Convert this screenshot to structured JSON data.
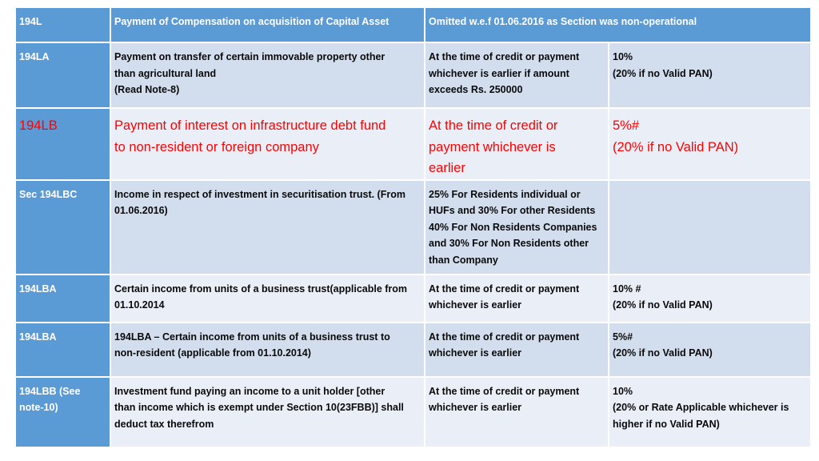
{
  "rows": [
    {
      "section": "194L",
      "nature": [
        "Payment of Compensation on acquisition of Capital Asset"
      ],
      "merged": "Omitted w.e.f 01.06.2016 as Section was non-operational"
    },
    {
      "section": "194LA",
      "nature": [
        "Payment on transfer of certain immovable property other",
        "than agricultural land",
        "(Read Note-8)"
      ],
      "timing": [
        "At the time of credit or payment",
        "whichever is earlier if amount",
        "exceeds Rs. 250000"
      ],
      "rate": [
        "10%",
        "(20% if no Valid PAN)"
      ]
    },
    {
      "section": "194LB",
      "nature": [
        "Payment of interest on infrastructure debt fund",
        "to non-resident or foreign company"
      ],
      "timing": [
        "At the time of credit or",
        "payment whichever is",
        "earlier"
      ],
      "rate": [
        "5%#",
        "(20% if no Valid PAN)"
      ]
    },
    {
      "section": "Sec 194LBC",
      "nature": [
        "Income in respect of investment in securitisation trust. (From",
        "01.06.2016)"
      ],
      "timing": [
        "25% For Residents individual or",
        "HUFs and 30% For other Residents",
        "40% For Non Residents Companies",
        "and 30% For Non Residents other",
        "than Company"
      ],
      "rate": []
    },
    {
      "section": "194LBA",
      "nature": [
        "Certain income from units of a business trust(applicable from",
        "01.10.2014"
      ],
      "timing": [
        "At the time of credit or payment",
        "whichever is earlier"
      ],
      "rate": [
        "10% #",
        "(20% if no Valid PAN)"
      ]
    },
    {
      "section": "194LBA",
      "nature": [
        "194LBA – Certain income from units of a business trust to",
        "non-resident (applicable from 01.10.2014)"
      ],
      "timing": [
        "At the time of credit or payment",
        "whichever is earlier"
      ],
      "rate": [
        "5%#",
        "(20% if no Valid PAN)"
      ]
    },
    {
      "section": [
        "194LBB (See",
        "note-10)"
      ],
      "nature": [
        "Investment fund paying an income to a unit holder [other",
        "than income which is exempt under Section 10(23FBB)] shall",
        "deduct tax therefrom"
      ],
      "timing": [
        "At the time of credit or payment",
        "whichever is earlier"
      ],
      "rate": [
        "10%",
        "(20% or Rate Applicable whichever is",
        "higher if no Valid PAN)"
      ]
    }
  ]
}
